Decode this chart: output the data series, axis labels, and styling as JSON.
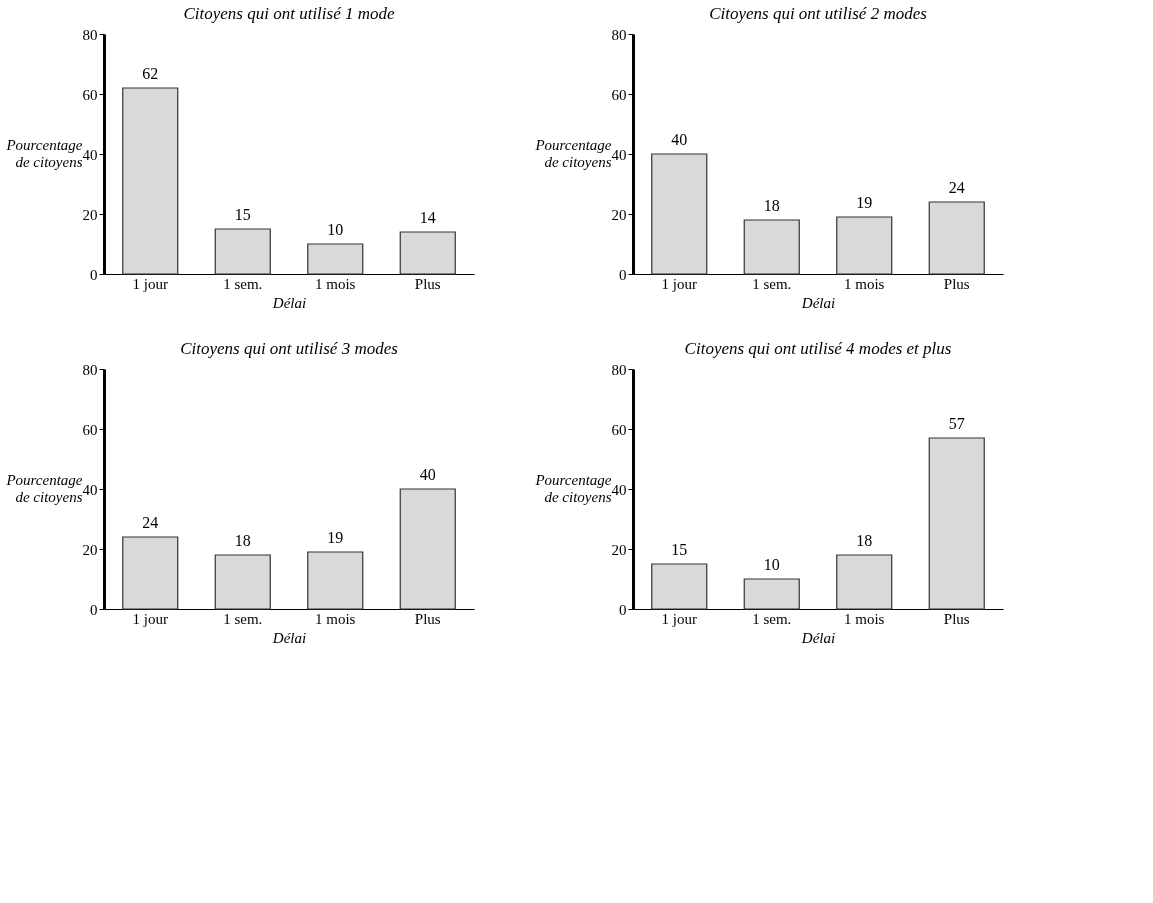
{
  "chart_data": [
    {
      "type": "bar",
      "title": "Citoyens qui ont utilisé 1 mode",
      "xlabel": "Délai",
      "ylabel": "Pourcentage\nde citoyens",
      "categories": [
        "1 jour",
        "1 sem.",
        "1 mois",
        "Plus"
      ],
      "values": [
        62,
        15,
        10,
        14
      ],
      "color": "#d9d9d9",
      "ylim": [
        0,
        80
      ],
      "yticks": [
        0,
        20,
        40,
        60,
        80
      ],
      "data_labels": true,
      "grid": false
    },
    {
      "type": "bar",
      "title": "Citoyens qui ont utilisé 2 modes",
      "xlabel": "Délai",
      "ylabel": "Pourcentage\nde citoyens",
      "categories": [
        "1 jour",
        "1 sem.",
        "1 mois",
        "Plus"
      ],
      "values": [
        40,
        18,
        19,
        24
      ],
      "color": "#d9d9d9",
      "ylim": [
        0,
        80
      ],
      "yticks": [
        0,
        20,
        40,
        60,
        80
      ],
      "data_labels": true,
      "grid": false
    },
    {
      "type": "bar",
      "title": "Citoyens qui ont utilisé 3 modes",
      "xlabel": "Délai",
      "ylabel": "Pourcentage\nde citoyens",
      "categories": [
        "1 jour",
        "1 sem.",
        "1 mois",
        "Plus"
      ],
      "values": [
        24,
        18,
        19,
        40
      ],
      "color": "#d9d9d9",
      "ylim": [
        0,
        80
      ],
      "yticks": [
        0,
        20,
        40,
        60,
        80
      ],
      "data_labels": true,
      "grid": false
    },
    {
      "type": "bar",
      "title": "Citoyens qui ont utilisé 4 modes et plus",
      "xlabel": "Délai",
      "ylabel": "Pourcentage\nde citoyens",
      "categories": [
        "1 jour",
        "1 sem.",
        "1 mois",
        "Plus"
      ],
      "values": [
        15,
        10,
        18,
        57
      ],
      "color": "#d9d9d9",
      "ylim": [
        0,
        80
      ],
      "yticks": [
        0,
        20,
        40,
        60,
        80
      ],
      "data_labels": true,
      "grid": false
    }
  ]
}
